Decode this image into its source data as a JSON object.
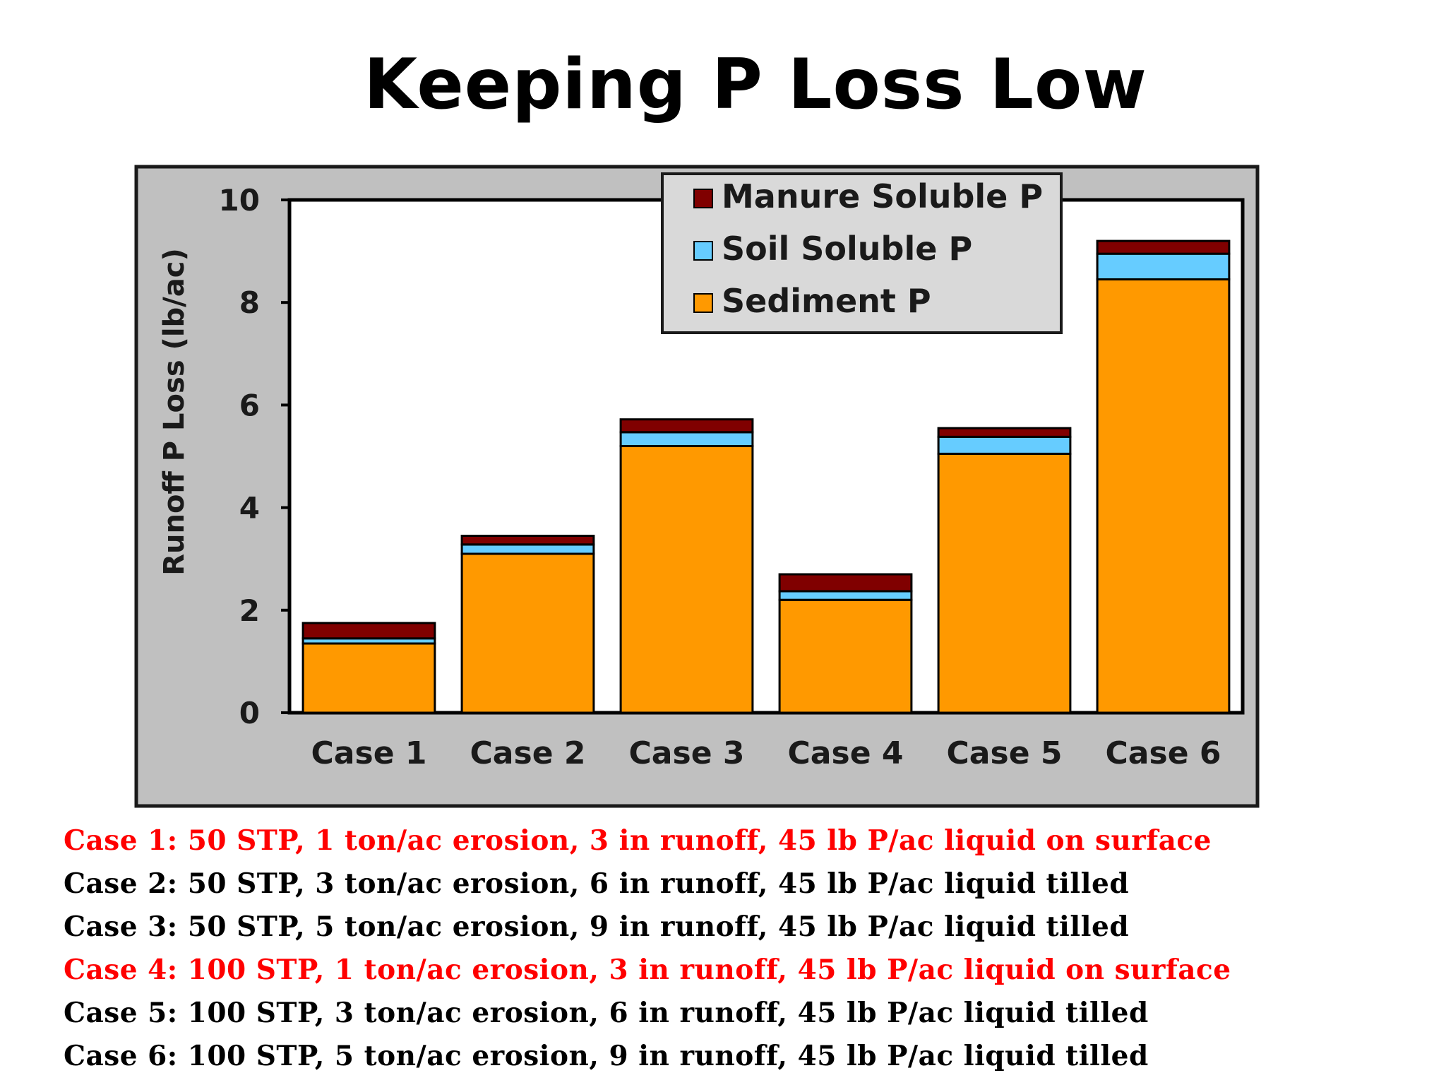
{
  "slide": {
    "title": "Keeping P Loss Low"
  },
  "colors": {
    "plot_panel": "#c0c0c0",
    "plot_area": "#ffffff",
    "note_highlight": "#ff0000",
    "note_default": "#000000"
  },
  "chart_data": {
    "type": "bar",
    "stacked": true,
    "title": "",
    "xlabel": "",
    "ylabel": "Runoff P Loss (lb/ac)",
    "ylim": [
      0,
      10
    ],
    "yticks": [
      "0",
      "2",
      "4",
      "6",
      "8",
      "10"
    ],
    "grid": false,
    "legend_position": "top-right",
    "categories": [
      "Case 1",
      "Case 2",
      "Case 3",
      "Case 4",
      "Case 5",
      "Case 6"
    ],
    "series": [
      {
        "name": "Sediment P",
        "color": "#ff9900",
        "values": [
          1.35,
          3.1,
          5.2,
          2.2,
          5.05,
          8.45
        ]
      },
      {
        "name": "Soil Soluble P",
        "color": "#66ccff",
        "values": [
          0.1,
          0.18,
          0.27,
          0.17,
          0.33,
          0.5
        ]
      },
      {
        "name": "Manure Soluble P",
        "color": "#800000",
        "values": [
          0.3,
          0.17,
          0.25,
          0.33,
          0.17,
          0.25
        ]
      }
    ],
    "legend_order": [
      "Manure Soluble P",
      "Soil Soluble P",
      "Sediment P"
    ]
  },
  "case_notes": [
    {
      "text": "Case 1: 50 STP, 1 ton/ac erosion, 3 in runoff, 45 lb P/ac liquid on surface",
      "color": "#ff0000"
    },
    {
      "text": "Case 2: 50 STP, 3 ton/ac erosion, 6 in runoff, 45 lb P/ac liquid tilled",
      "color": "#000000"
    },
    {
      "text": "Case 3: 50 STP, 5 ton/ac erosion, 9 in runoff, 45 lb P/ac liquid tilled",
      "color": "#000000"
    },
    {
      "text": "Case 4: 100 STP, 1 ton/ac erosion, 3 in runoff, 45 lb P/ac liquid on surface",
      "color": "#ff0000"
    },
    {
      "text": "Case 5: 100 STP, 3 ton/ac erosion, 6 in runoff, 45 lb P/ac liquid tilled",
      "color": "#000000"
    },
    {
      "text": "Case 6: 100 STP, 5 ton/ac erosion, 9 in runoff, 45 lb P/ac liquid tilled",
      "color": "#000000"
    }
  ]
}
